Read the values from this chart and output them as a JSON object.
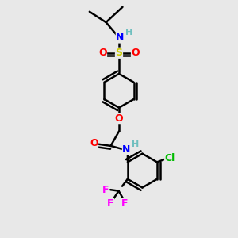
{
  "background_color": "#e8e8e8",
  "atom_colors": {
    "C": "#000000",
    "H": "#6fbfbf",
    "N": "#0000ff",
    "O": "#ff0000",
    "S": "#cccc00",
    "F": "#ff00ff",
    "Cl": "#00bb00"
  },
  "bond_color": "#000000",
  "bond_width": 1.8,
  "font_size": 9,
  "figsize": [
    3.0,
    3.0
  ],
  "dpi": 100
}
